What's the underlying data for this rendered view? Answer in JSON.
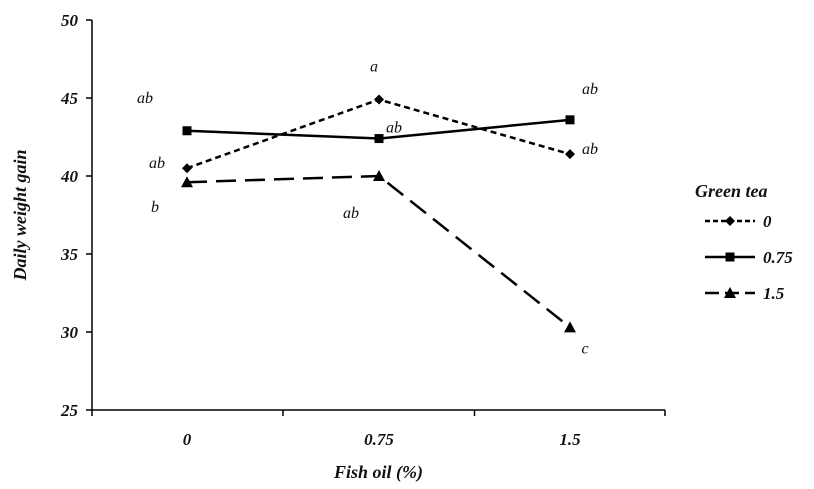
{
  "chart_data": {
    "type": "line",
    "xlabel": "Fish oil (%)",
    "ylabel": "Daily weight gain",
    "categories": [
      "0",
      "0.75",
      "1.5"
    ],
    "ylim": [
      25,
      50
    ],
    "yticks": [
      "25",
      "30",
      "35",
      "40",
      "45",
      "50"
    ],
    "grid": false,
    "legend": {
      "title": "Green tea",
      "placement": "right"
    },
    "series": [
      {
        "name": "0",
        "values": [
          40.5,
          44.9,
          41.4
        ],
        "marker": "diamond",
        "dash": "short-dash",
        "labels": [
          "ab",
          "a",
          "ab"
        ]
      },
      {
        "name": "0.75",
        "values": [
          42.9,
          42.4,
          43.6
        ],
        "marker": "square",
        "dash": "solid",
        "labels": [
          "ab",
          "ab",
          "ab"
        ]
      },
      {
        "name": "1.5",
        "values": [
          39.6,
          40.0,
          30.3
        ],
        "marker": "triangle",
        "dash": "long-dash",
        "labels": [
          "b",
          "ab",
          "c"
        ]
      }
    ]
  }
}
